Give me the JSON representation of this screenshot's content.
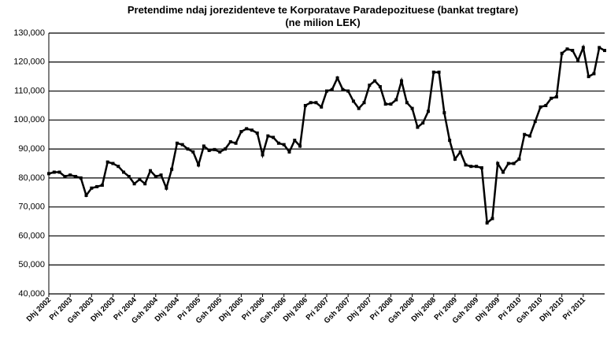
{
  "chart_data": {
    "type": "line",
    "title": "Pretendime ndaj jorezidenteve te Korporatave Paradepozituese (bankat tregtare)",
    "subtitle": "(ne milion LEK)",
    "categories": [
      "Dhj 2002",
      null,
      null,
      null,
      "Pri 2003",
      null,
      null,
      null,
      "Gsh 2003",
      null,
      null,
      null,
      "Dhj 2003",
      null,
      null,
      null,
      "Pri 2004",
      null,
      null,
      null,
      "Gsh 2004",
      null,
      null,
      null,
      "Dhj 2004",
      null,
      null,
      null,
      "Pri 2005",
      null,
      null,
      null,
      "Gsh 2005",
      null,
      null,
      null,
      "Dhj 2005",
      null,
      null,
      null,
      "Pri 2006",
      null,
      null,
      null,
      "Gsh 2006",
      null,
      null,
      null,
      "Dhj 2006",
      null,
      null,
      null,
      "Pri 2007",
      null,
      null,
      null,
      "Gsh 2007",
      null,
      null,
      null,
      "Dhj 2007",
      null,
      null,
      null,
      "Pri 2008",
      null,
      null,
      null,
      "Gsh 2008",
      null,
      null,
      null,
      "Dhj 2008",
      null,
      null,
      null,
      "Pri 2009",
      null,
      null,
      null,
      "Gsh 2009",
      null,
      null,
      null,
      "Dhj 2009",
      null,
      null,
      null,
      "Pri 2010",
      null,
      null,
      null,
      "Gsh 2010",
      null,
      null,
      null,
      "Dhj 2010",
      null,
      null,
      null,
      "Pri 2011",
      null,
      null,
      null,
      null
    ],
    "series": [
      {
        "name": "Pretendime",
        "color": "#000000",
        "values": [
          81500,
          82000,
          82000,
          80500,
          81000,
          80500,
          80000,
          74000,
          76500,
          77000,
          77500,
          85500,
          85000,
          84000,
          82000,
          80500,
          78000,
          79500,
          78000,
          82500,
          80500,
          81000,
          76500,
          83000,
          92000,
          91500,
          90000,
          89000,
          84500,
          91000,
          89500,
          89800,
          89000,
          90000,
          92500,
          92000,
          96000,
          97000,
          96500,
          95500,
          88000,
          94500,
          94000,
          92000,
          91500,
          89000,
          93000,
          91000,
          105000,
          106000,
          106000,
          104500,
          110000,
          110500,
          114500,
          110500,
          110000,
          106500,
          104000,
          106000,
          112000,
          113500,
          111500,
          105500,
          105500,
          107000,
          113500,
          106000,
          104000,
          97500,
          99000,
          103000,
          116500,
          116500,
          102500,
          93000,
          86500,
          89000,
          84500,
          84000,
          84000,
          83500,
          64500,
          66000,
          85000,
          82000,
          85000,
          85000,
          86500,
          95000,
          94500,
          99500,
          104500,
          105000,
          107500,
          108000,
          123000,
          124500,
          124000,
          120500,
          125000,
          115000,
          116000,
          125000,
          124000
        ]
      }
    ],
    "ylim": [
      40000,
      130000
    ],
    "yticks": [
      {
        "value": 40000,
        "label": "40,000"
      },
      {
        "value": 50000,
        "label": "50,000"
      },
      {
        "value": 60000,
        "label": "60,000"
      },
      {
        "value": 70000,
        "label": "70,000"
      },
      {
        "value": 80000,
        "label": "80,000"
      },
      {
        "value": 90000,
        "label": "90,000"
      },
      {
        "value": 100000,
        "label": "100,000"
      },
      {
        "value": 110000,
        "label": "110,000"
      },
      {
        "value": 120000,
        "label": "120,000"
      },
      {
        "value": 130000,
        "label": "130,000"
      }
    ],
    "grid": true
  }
}
